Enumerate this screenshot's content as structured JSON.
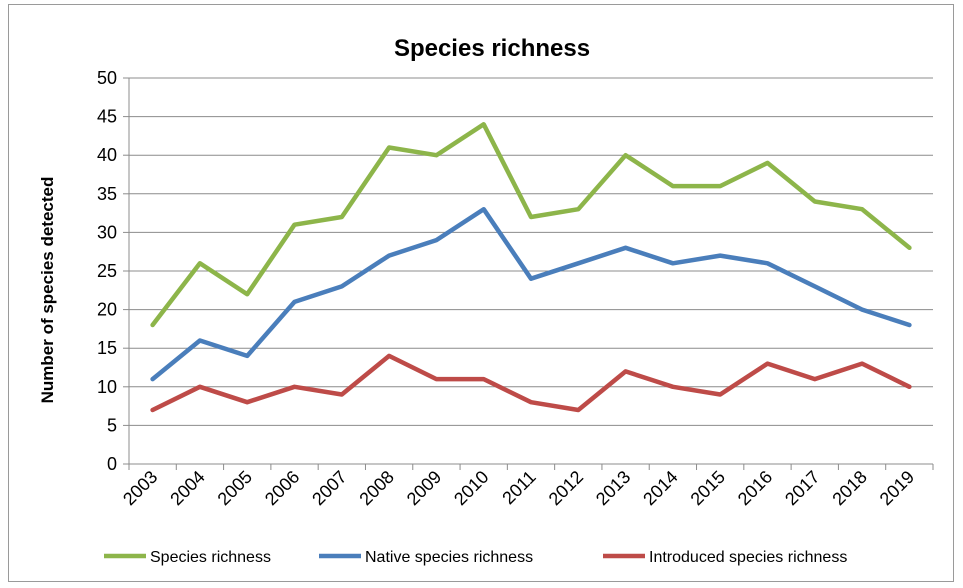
{
  "chart_data": {
    "type": "line",
    "title": "Species richness",
    "xlabel": "",
    "ylabel": "Number of species detected",
    "ylim": [
      0,
      50
    ],
    "ytick_step": 5,
    "grid": true,
    "legend_position": "bottom",
    "categories": [
      "2003",
      "2004",
      "2005",
      "2006",
      "2007",
      "2008",
      "2009",
      "2010",
      "2011",
      "2012",
      "2013",
      "2014",
      "2015",
      "2016",
      "2017",
      "2018",
      "2019"
    ],
    "series": [
      {
        "name": "Species richness",
        "color": "#8DB54A",
        "values": [
          18,
          26,
          22,
          31,
          32,
          41,
          40,
          44,
          32,
          33,
          40,
          36,
          36,
          39,
          34,
          33,
          28
        ]
      },
      {
        "name": "Native species richness",
        "color": "#4A7EBB",
        "values": [
          11,
          16,
          14,
          21,
          23,
          27,
          29,
          33,
          24,
          26,
          28,
          26,
          27,
          26,
          23,
          20,
          18
        ]
      },
      {
        "name": "Introduced species richness",
        "color": "#BE4B48",
        "values": [
          7,
          10,
          8,
          10,
          9,
          14,
          11,
          11,
          8,
          7,
          12,
          10,
          9,
          13,
          11,
          13,
          10
        ]
      }
    ]
  }
}
